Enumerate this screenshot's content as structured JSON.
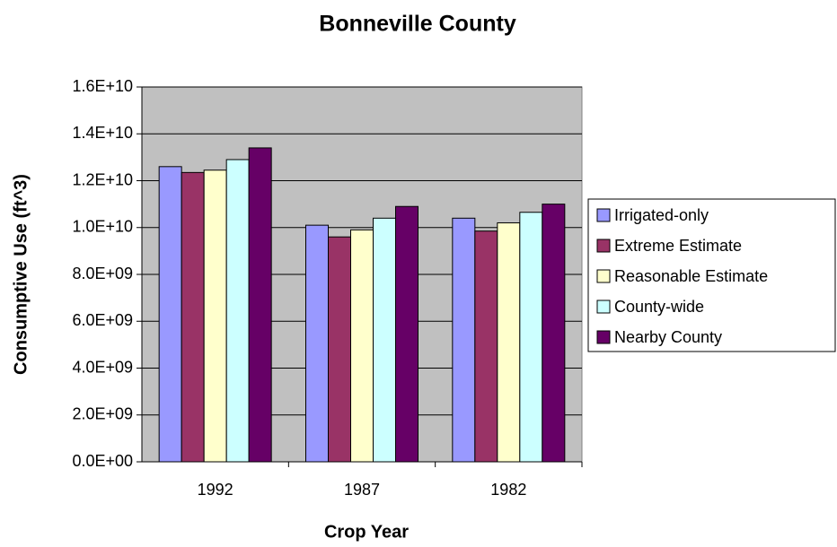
{
  "chart_data": {
    "type": "bar",
    "title": "Bonneville County",
    "x_label": "Crop Year",
    "y_label": "Consumptive Use (ft^3)",
    "categories": [
      "1992",
      "1987",
      "1982"
    ],
    "series": [
      {
        "name": "Irrigated-only",
        "color": "#9999ff",
        "values": [
          12600000000,
          10100000000,
          10400000000
        ]
      },
      {
        "name": "Extreme Estimate",
        "color": "#993366",
        "values": [
          12350000000,
          9600000000,
          9850000000
        ]
      },
      {
        "name": "Reasonable Estimate",
        "color": "#ffffcc",
        "values": [
          12450000000,
          9900000000,
          10200000000
        ]
      },
      {
        "name": "County-wide",
        "color": "#ccffff",
        "values": [
          12900000000,
          10400000000,
          10650000000
        ]
      },
      {
        "name": "Nearby County",
        "color": "#660066",
        "values": [
          13400000000,
          10900000000,
          11000000000
        ]
      }
    ],
    "ylim": [
      0,
      16000000000
    ],
    "yticks": [
      {
        "value": 0,
        "label": "0.0E+00"
      },
      {
        "value": 2000000000,
        "label": "2.0E+09"
      },
      {
        "value": 4000000000,
        "label": "4.0E+09"
      },
      {
        "value": 6000000000,
        "label": "6.0E+09"
      },
      {
        "value": 8000000000,
        "label": "8.0E+09"
      },
      {
        "value": 10000000000,
        "label": "1.0E+10"
      },
      {
        "value": 12000000000,
        "label": "1.2E+10"
      },
      {
        "value": 14000000000,
        "label": "1.4E+10"
      },
      {
        "value": 16000000000,
        "label": "1.6E+10"
      }
    ],
    "grid": true,
    "plot_background": "#c0c0c0",
    "legend_position": "right"
  }
}
